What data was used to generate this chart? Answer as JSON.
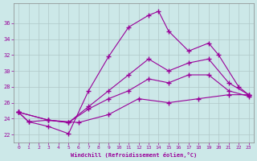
{
  "xlabel": "Windchill (Refroidissement éolien,°C)",
  "bg_color": "#cce8e8",
  "line_color": "#990099",
  "grid_color": "#b0c8c8",
  "xlim": [
    -0.5,
    23.5
  ],
  "ylim": [
    21.0,
    38.5
  ],
  "xticks": [
    0,
    1,
    2,
    3,
    4,
    5,
    6,
    7,
    8,
    9,
    10,
    11,
    12,
    13,
    14,
    15,
    16,
    17,
    18,
    19,
    20,
    21,
    22,
    23
  ],
  "yticks": [
    22,
    24,
    26,
    28,
    30,
    32,
    34,
    36
  ],
  "series": [
    {
      "x": [
        0,
        1,
        3,
        5,
        7,
        9,
        11,
        13,
        14,
        15,
        17,
        19,
        20,
        22,
        23
      ],
      "y": [
        24.8,
        23.6,
        23.0,
        22.1,
        27.5,
        31.8,
        35.5,
        37.0,
        37.5,
        35.0,
        32.5,
        33.5,
        32.0,
        28.0,
        27.0
      ]
    },
    {
      "x": [
        0,
        1,
        3,
        5,
        7,
        9,
        11,
        13,
        15,
        17,
        19,
        21,
        23
      ],
      "y": [
        24.8,
        23.6,
        23.8,
        23.5,
        25.5,
        27.5,
        29.5,
        31.5,
        30.0,
        31.0,
        31.5,
        28.5,
        27.0
      ]
    },
    {
      "x": [
        0,
        3,
        5,
        7,
        9,
        11,
        13,
        15,
        17,
        19,
        21,
        23
      ],
      "y": [
        24.8,
        23.8,
        23.5,
        25.2,
        26.5,
        27.5,
        29.0,
        28.5,
        29.5,
        29.5,
        27.5,
        26.8
      ]
    },
    {
      "x": [
        0,
        3,
        6,
        9,
        12,
        15,
        18,
        21,
        23
      ],
      "y": [
        24.8,
        23.8,
        23.5,
        24.5,
        26.5,
        26.0,
        26.5,
        27.0,
        27.0
      ]
    }
  ]
}
